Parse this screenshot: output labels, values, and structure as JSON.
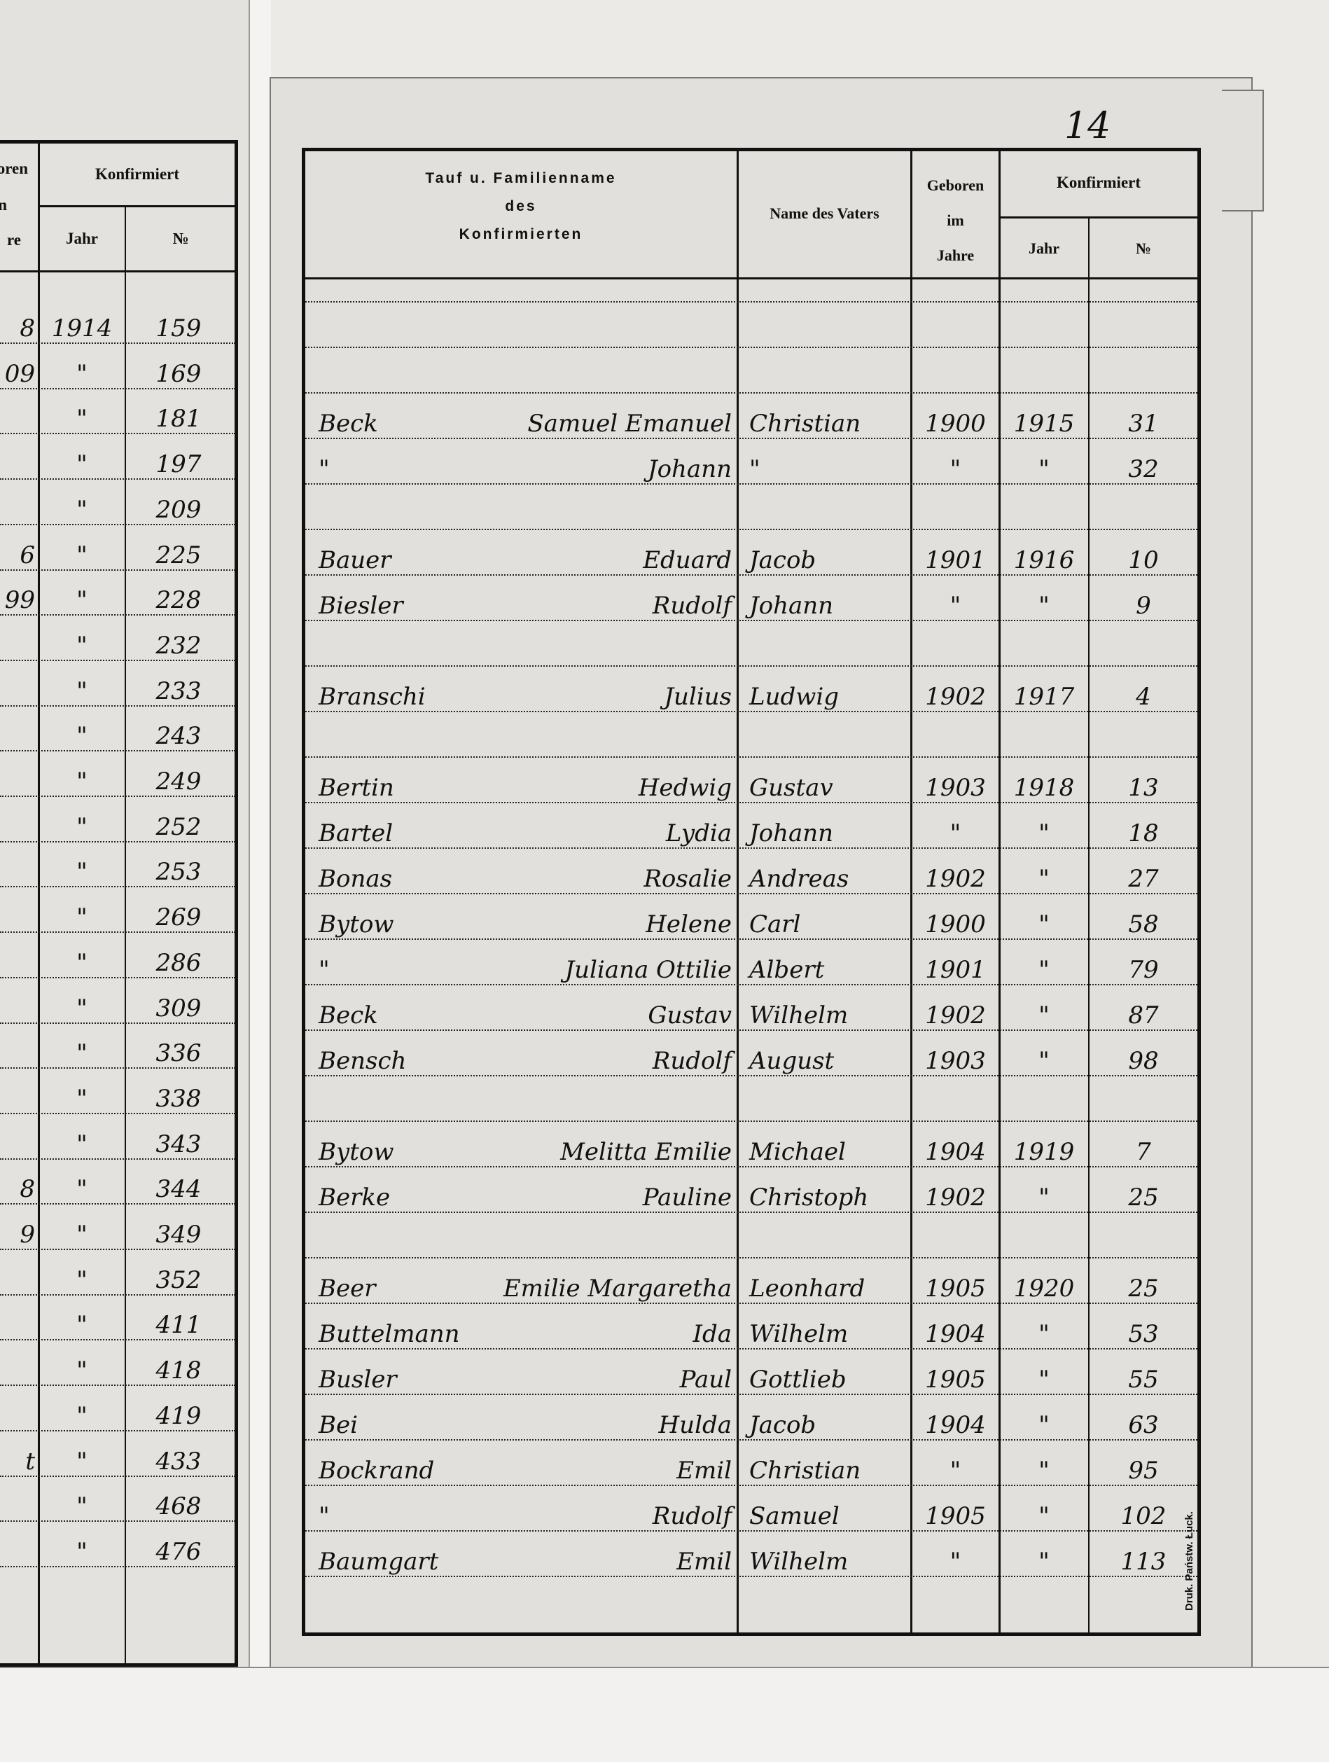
{
  "left_page": {
    "header": {
      "stub_top": "oren",
      "stub_mid": "n",
      "stub_bottom": "re",
      "konfirmiert": "Konfirmiert",
      "jahr": "Jahr",
      "nr": "№"
    },
    "rows": [
      {
        "stub": "8",
        "year": "1914",
        "nr": "159"
      },
      {
        "stub": "09",
        "year": "\"",
        "nr": "169"
      },
      {
        "stub": "",
        "year": "\"",
        "nr": "181"
      },
      {
        "stub": "",
        "year": "\"",
        "nr": "197"
      },
      {
        "stub": "",
        "year": "\"",
        "nr": "209"
      },
      {
        "stub": "6",
        "year": "\"",
        "nr": "225"
      },
      {
        "stub": "99",
        "year": "\"",
        "nr": "228"
      },
      {
        "stub": "",
        "year": "\"",
        "nr": "232"
      },
      {
        "stub": "",
        "year": "\"",
        "nr": "233"
      },
      {
        "stub": "",
        "year": "\"",
        "nr": "243"
      },
      {
        "stub": "",
        "year": "\"",
        "nr": "249"
      },
      {
        "stub": "",
        "year": "\"",
        "nr": "252"
      },
      {
        "stub": "",
        "year": "\"",
        "nr": "253"
      },
      {
        "stub": "",
        "year": "\"",
        "nr": "269"
      },
      {
        "stub": "",
        "year": "\"",
        "nr": "286"
      },
      {
        "stub": "",
        "year": "\"",
        "nr": "309"
      },
      {
        "stub": "",
        "year": "\"",
        "nr": "336"
      },
      {
        "stub": "",
        "year": "\"",
        "nr": "338"
      },
      {
        "stub": "",
        "year": "\"",
        "nr": "343"
      },
      {
        "stub": "8",
        "year": "\"",
        "nr": "344"
      },
      {
        "stub": "9",
        "year": "\"",
        "nr": "349"
      },
      {
        "stub": "",
        "year": "\"",
        "nr": "352"
      },
      {
        "stub": "",
        "year": "\"",
        "nr": "411"
      },
      {
        "stub": "",
        "year": "\"",
        "nr": "418"
      },
      {
        "stub": "",
        "year": "\"",
        "nr": "419"
      },
      {
        "stub": "t",
        "year": "\"",
        "nr": "433"
      },
      {
        "stub": "",
        "year": "\"",
        "nr": "468"
      },
      {
        "stub": "",
        "year": "\"",
        "nr": "476"
      }
    ]
  },
  "right_page": {
    "page_number": "14",
    "header": {
      "name_line1": "Tauf u. Familienname",
      "name_line2": "des",
      "name_line3": "Konfirmierten",
      "father": "Name des Vaters",
      "born_line1": "Geboren",
      "born_line2": "im",
      "born_line3": "Jahre",
      "konfirmiert": "Konfirmiert",
      "jahr": "Jahr",
      "nr": "№"
    },
    "rows": [
      {
        "surname": "Beck",
        "given": "Samuel Emanuel",
        "father": "Christian",
        "born": "1900",
        "year": "1915",
        "nr": "31"
      },
      {
        "surname": "\"",
        "given": "Johann",
        "father": "\"",
        "born": "\"",
        "year": "\"",
        "nr": "32"
      },
      null,
      {
        "surname": "Bauer",
        "given": "Eduard",
        "father": "Jacob",
        "born": "1901",
        "year": "1916",
        "nr": "10"
      },
      {
        "surname": "Biesler",
        "given": "Rudolf",
        "father": "Johann",
        "born": "\"",
        "year": "\"",
        "nr": "9"
      },
      null,
      {
        "surname": "Branschi",
        "given": "Julius",
        "father": "Ludwig",
        "born": "1902",
        "year": "1917",
        "nr": "4"
      },
      null,
      {
        "surname": "Bertin",
        "given": "Hedwig",
        "father": "Gustav",
        "born": "1903",
        "year": "1918",
        "nr": "13"
      },
      {
        "surname": "Bartel",
        "given": "Lydia",
        "father": "Johann",
        "born": "\"",
        "year": "\"",
        "nr": "18"
      },
      {
        "surname": "Bonas",
        "given": "Rosalie",
        "father": "Andreas",
        "born": "1902",
        "year": "\"",
        "nr": "27"
      },
      {
        "surname": "Bytow",
        "given": "Helene",
        "father": "Carl",
        "born": "1900",
        "year": "\"",
        "nr": "58"
      },
      {
        "surname": "\"",
        "given": "Juliana Ottilie",
        "father": "Albert",
        "born": "1901",
        "year": "\"",
        "nr": "79"
      },
      {
        "surname": "Beck",
        "given": "Gustav",
        "father": "Wilhelm",
        "born": "1902",
        "year": "\"",
        "nr": "87"
      },
      {
        "surname": "Bensch",
        "given": "Rudolf",
        "father": "August",
        "born": "1903",
        "year": "\"",
        "nr": "98"
      },
      null,
      {
        "surname": "Bytow",
        "given": "Melitta Emilie",
        "father": "Michael",
        "born": "1904",
        "year": "1919",
        "nr": "7"
      },
      {
        "surname": "Berke",
        "given": "Pauline",
        "father": "Christoph",
        "born": "1902",
        "year": "\"",
        "nr": "25"
      },
      null,
      {
        "surname": "Beer",
        "given": "Emilie Margaretha",
        "father": "Leonhard",
        "born": "1905",
        "year": "1920",
        "nr": "25"
      },
      {
        "surname": "Buttelmann",
        "given": "Ida",
        "father": "Wilhelm",
        "born": "1904",
        "year": "\"",
        "nr": "53"
      },
      {
        "surname": "Busler",
        "given": "Paul",
        "father": "Gottlieb",
        "born": "1905",
        "year": "\"",
        "nr": "55"
      },
      {
        "surname": "Bei",
        "given": "Hulda",
        "father": "Jacob",
        "born": "1904",
        "year": "\"",
        "nr": "63"
      },
      {
        "surname": "Bockrand",
        "given": "Emil",
        "father": "Christian",
        "born": "\"",
        "year": "\"",
        "nr": "95"
      },
      {
        "surname": "\"",
        "given": "Rudolf",
        "father": "Samuel",
        "born": "1905",
        "year": "\"",
        "nr": "102"
      },
      {
        "surname": "Baumgart",
        "given": "Emil",
        "father": "Wilhelm",
        "born": "\"",
        "year": "\"",
        "nr": "113"
      }
    ],
    "printer_note": "Druk. Państw. Łuck."
  }
}
